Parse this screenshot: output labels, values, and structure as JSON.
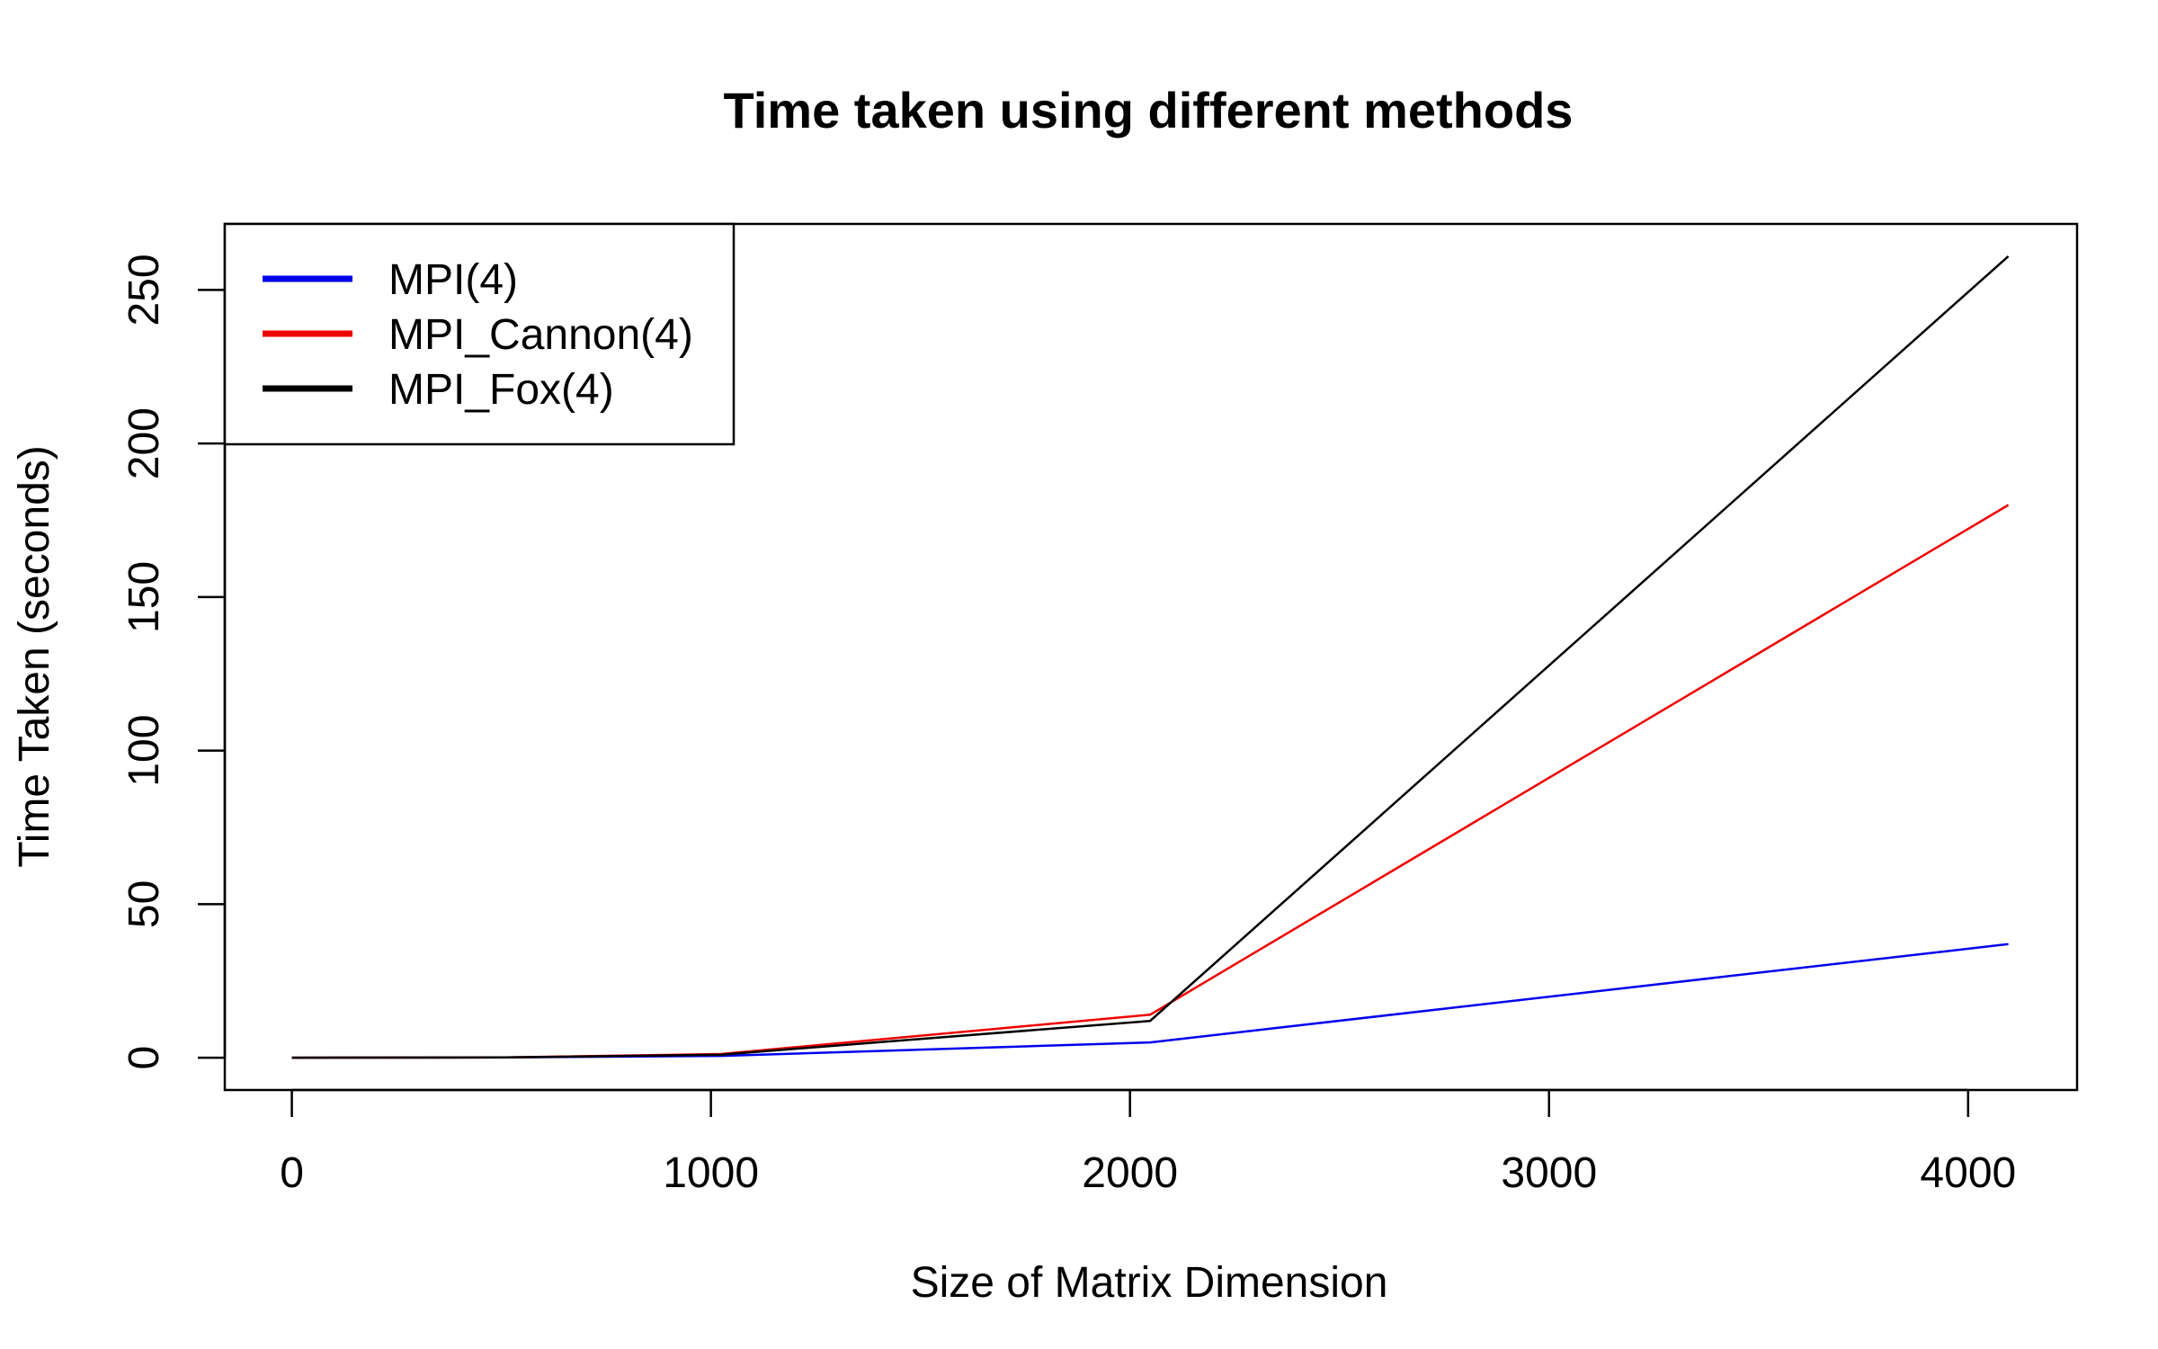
{
  "chart_data": {
    "type": "line",
    "title": "Time taken using different methods",
    "xlabel": "Size of Matrix Dimension",
    "ylabel": "Time Taken (seconds)",
    "xlim": [
      -160,
      4260
    ],
    "ylim": [
      -10.5,
      271.5
    ],
    "xticks": [
      0,
      1000,
      2000,
      3000,
      4000
    ],
    "yticks": [
      0,
      50,
      100,
      150,
      200,
      250
    ],
    "grid": false,
    "legend_position": "top-left",
    "series": [
      {
        "name": "MPI(4)",
        "color": "#0000ee",
        "points": [
          [
            0,
            0
          ],
          [
            512,
            0.1
          ],
          [
            1024,
            0.6
          ],
          [
            2048,
            5
          ],
          [
            4096,
            37
          ]
        ]
      },
      {
        "name": "MPI_Cannon(4)",
        "color": "#ee0000",
        "points": [
          [
            0,
            0
          ],
          [
            512,
            0.1
          ],
          [
            1024,
            1.2
          ],
          [
            2048,
            14
          ],
          [
            4096,
            180
          ]
        ]
      },
      {
        "name": "MPI_Fox(4)",
        "color": "#000000",
        "points": [
          [
            0,
            0
          ],
          [
            512,
            0.1
          ],
          [
            1024,
            1.0
          ],
          [
            2048,
            12
          ],
          [
            4096,
            261
          ]
        ]
      }
    ]
  }
}
